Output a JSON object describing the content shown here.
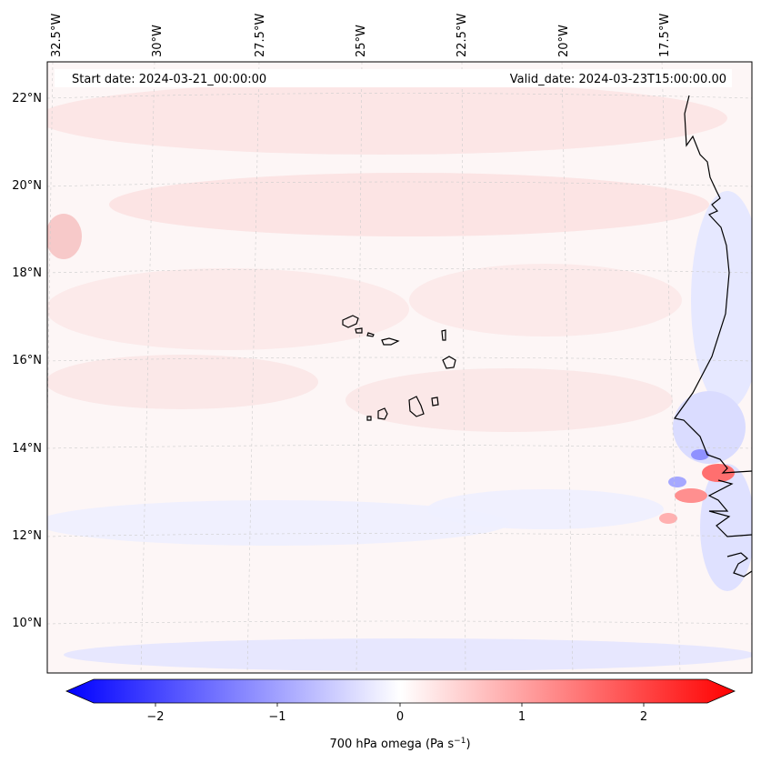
{
  "map": {
    "start_date_label": "Start date: 2024-03-21_00:00:00",
    "valid_date_label": "Valid_date: 2024-03-23T15:00:00.00",
    "lon_labels": [
      "32.5°W",
      "30°W",
      "27.5°W",
      "25°W",
      "22.5°W",
      "20°W",
      "17.5°W"
    ],
    "lat_labels": [
      "22°N",
      "20°N",
      "18°N",
      "16°N",
      "14°N",
      "12°N",
      "10°N"
    ],
    "field": "700 hPa omega",
    "colormap": "bwr",
    "coastline_color": "#000000"
  },
  "colorbar": {
    "ticks": [
      "−2",
      "−1",
      "0",
      "1",
      "2"
    ],
    "label_prefix": "700 hPa omega (Pa s",
    "label_sup": "−1",
    "label_suffix": ")",
    "range": [
      -2.75,
      2.75
    ],
    "extend": "both"
  }
}
